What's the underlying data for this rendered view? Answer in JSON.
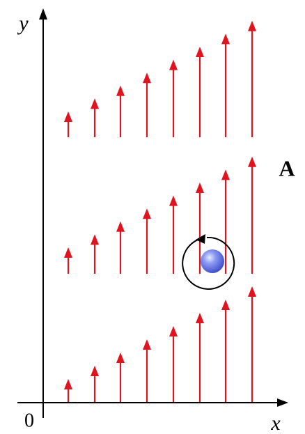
{
  "axes": {
    "y_label": "y",
    "x_label": "x",
    "origin": "0"
  },
  "region_label": "A"
}
